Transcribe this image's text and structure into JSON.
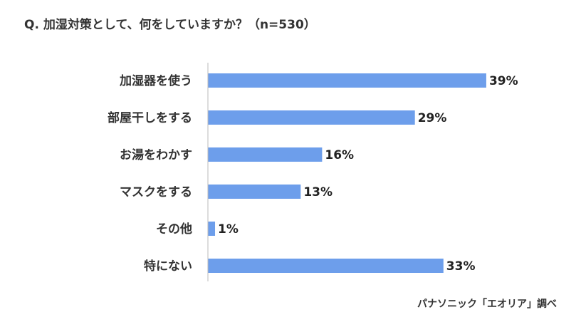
{
  "chart_data": {
    "type": "bar",
    "orientation": "horizontal",
    "title": "Q. 加湿対策として、何をしていますか？（n=530）",
    "categories": [
      "加湿器を使う",
      "部屋干しをする",
      "お湯をわかす",
      "マスクをする",
      "その他",
      "特にない"
    ],
    "values": [
      39,
      29,
      16,
      13,
      1,
      33
    ],
    "value_labels": [
      "39%",
      "29%",
      "16%",
      "13%",
      "1%",
      "33%"
    ],
    "unit": "%",
    "xlim": [
      0,
      41.5
    ],
    "grid": false,
    "legend": "none",
    "bar_color": "#6d9eeb",
    "axis_color": "#bbbbbb"
  },
  "source": "パナソニック「エオリア」調べ"
}
